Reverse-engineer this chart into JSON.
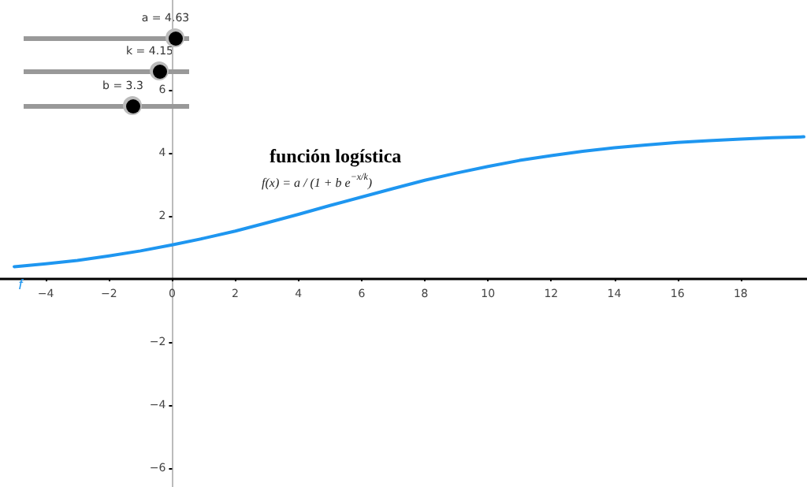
{
  "chart_data": {
    "type": "line",
    "title": "función logística",
    "x": [
      -5,
      -4,
      -3,
      -2,
      -1,
      0,
      1,
      2,
      3,
      4,
      5,
      6,
      7,
      8,
      9,
      10,
      11,
      12,
      13,
      14,
      15,
      16,
      17,
      18,
      19,
      20
    ],
    "series": [
      {
        "name": "f",
        "color": "#1e96f0",
        "values": [
          0.39,
          0.48,
          0.59,
          0.73,
          0.89,
          1.08,
          1.29,
          1.52,
          1.78,
          2.05,
          2.33,
          2.6,
          2.87,
          3.13,
          3.36,
          3.57,
          3.76,
          3.91,
          4.05,
          4.16,
          4.25,
          4.33,
          4.39,
          4.44,
          4.48,
          4.51
        ]
      }
    ],
    "xlim": [
      -5.45,
      20.1
    ],
    "ylim": [
      -6.6,
      8.85
    ],
    "xticks": [
      -4,
      -2,
      0,
      2,
      4,
      6,
      8,
      10,
      12,
      14,
      16,
      18
    ],
    "yticks": [
      -6,
      -4,
      -2,
      2,
      4,
      6
    ],
    "annotations": [
      "a = 4.63",
      "k = 4.15",
      "b = 3.3",
      "f(x) = a / (1 + b e$^{−x/k}$)"
    ],
    "grid": false,
    "legend": false,
    "marker": "none",
    "line_style": "solid"
  }
}
